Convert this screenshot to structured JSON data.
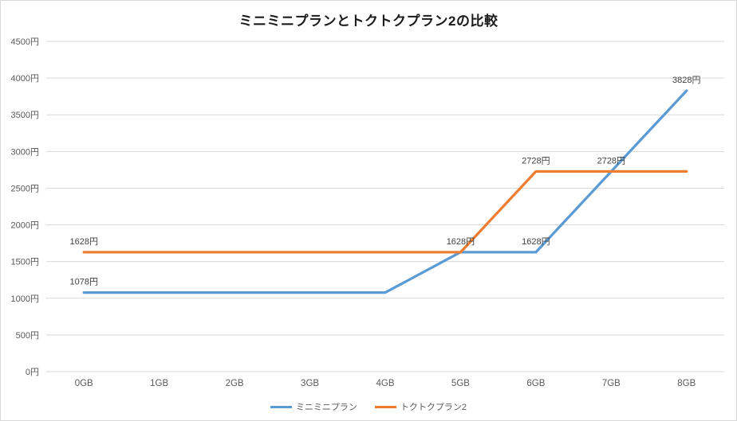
{
  "chart_data": {
    "type": "line",
    "title": "ミニミニプランとトクトクプラン2の比較",
    "categories": [
      "0GB",
      "1GB",
      "2GB",
      "3GB",
      "4GB",
      "5GB",
      "6GB",
      "7GB",
      "8GB"
    ],
    "xlabel": "",
    "ylabel": "",
    "ylim": [
      0,
      4500
    ],
    "y_ticks": [
      0,
      500,
      1000,
      1500,
      2000,
      2500,
      3000,
      3500,
      4000,
      4500
    ],
    "y_tick_labels": [
      "0円",
      "500円",
      "1000円",
      "1500円",
      "2000円",
      "2500円",
      "3000円",
      "3500円",
      "4000円",
      "4500円"
    ],
    "grid": true,
    "legend_position": "bottom",
    "series": [
      {
        "name": "ミニミニプラン",
        "color": "#5B9BD5",
        "values": [
          1078,
          1078,
          1078,
          1078,
          1078,
          1628,
          1628,
          2728,
          3828
        ]
      },
      {
        "name": "トクトクプラン2",
        "color": "#ED7D31",
        "values": [
          1628,
          1628,
          1628,
          1628,
          1628,
          1628,
          2728,
          2728,
          2728
        ]
      }
    ],
    "point_labels": [
      {
        "series": 0,
        "index": 0,
        "text": "1078円"
      },
      {
        "series": 1,
        "index": 0,
        "text": "1628円"
      },
      {
        "series": 0,
        "index": 5,
        "text": "1628円"
      },
      {
        "series": 0,
        "index": 6,
        "text": "1628円"
      },
      {
        "series": 1,
        "index": 6,
        "text": "2728円"
      },
      {
        "series": 0,
        "index": 7,
        "text": "2728円"
      },
      {
        "series": 0,
        "index": 8,
        "text": "3828円"
      }
    ],
    "colors": {
      "grid": "#D9D9D9",
      "axis_text": "#595959",
      "label_text": "#404040",
      "border": "#D9D9D9"
    }
  }
}
